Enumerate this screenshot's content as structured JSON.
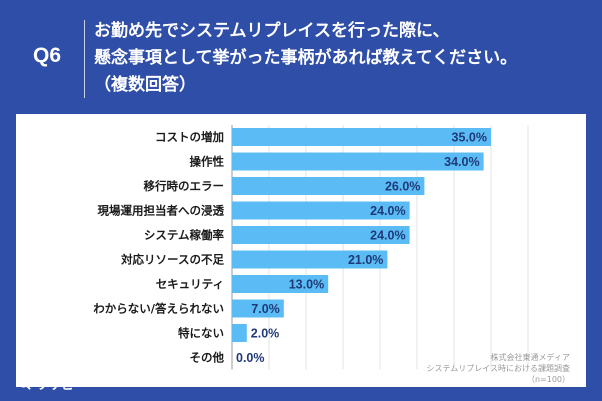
{
  "header": {
    "q_label": "Q6",
    "question_line1": "お勤め先でシステムリプレイスを行った際に、",
    "question_line2": "懸念事項として挙がった事柄があれば教えてください。",
    "question_line3": "（複数回答）"
  },
  "source": {
    "line1": "株式会社東通メディア",
    "line2": "システムリプレイス時における課題調査",
    "line3": "（n=100）"
  },
  "brand": {
    "name": "リサピー"
  },
  "colors": {
    "background": "#2f4ea8",
    "bar": "#5bbcf5",
    "value_text": "#1f3a78"
  },
  "chart_data": {
    "type": "bar",
    "orientation": "horizontal",
    "categories": [
      "コストの増加",
      "操作性",
      "移行時のエラー",
      "現場運用担当者への浸透",
      "システム稼働率",
      "対応リソースの不足",
      "セキュリティ",
      "わからない/答えられない",
      "特にない",
      "その他"
    ],
    "values": [
      35.0,
      34.0,
      26.0,
      24.0,
      24.0,
      21.0,
      13.0,
      7.0,
      2.0,
      0.0
    ],
    "value_labels": [
      "35.0%",
      "34.0%",
      "26.0%",
      "24.0%",
      "24.0%",
      "21.0%",
      "13.0%",
      "7.0%",
      "2.0%",
      "0.0%"
    ],
    "xlim": [
      0,
      40
    ],
    "grid": true
  }
}
